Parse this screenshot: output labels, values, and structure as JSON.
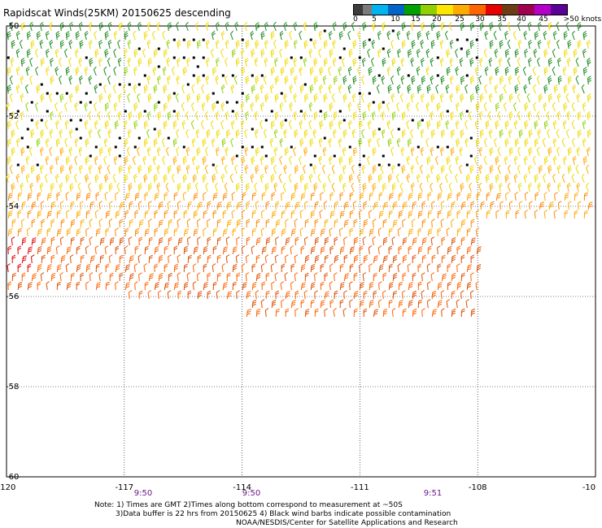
{
  "title": "Rapidscat Winds(25KM) 20150625 descending",
  "colorbar": {
    "colors": [
      "#3c3c3c",
      "#7b7b7b",
      "#00b4f0",
      "#0064c8",
      "#00a000",
      "#90d000",
      "#ffe600",
      "#ffaa00",
      "#ff6400",
      "#e60000",
      "#6e3c14",
      "#a00050",
      "#b400c8",
      "#5a0096"
    ],
    "labels": [
      "0",
      "5",
      "10",
      "15",
      "20",
      "25",
      "30",
      "35",
      "40",
      "45",
      ">50 knots"
    ]
  },
  "axes": {
    "lon_ticks": [
      "-120",
      "-117",
      "-114",
      "-111",
      "-108",
      "-10"
    ],
    "lat_ticks": [
      "-50",
      "-52",
      "-54",
      "-56",
      "-58",
      "-60"
    ],
    "lon_range": [
      -120,
      -105
    ],
    "lat_range": [
      -50,
      -60
    ]
  },
  "times": [
    "9:50",
    "9:50",
    "9:51"
  ],
  "time_color": "#6a1a8a",
  "notes": [
    "Note: 1) Times are GMT 2)Times along bottom correspond to measurement at ~50S",
    "3)Data buffer is 22 hrs from 20150625 4) Black wind barbs indicate possible contamination",
    "NOAA/NESDIS/Center for Satellite Applications and Research"
  ]
}
